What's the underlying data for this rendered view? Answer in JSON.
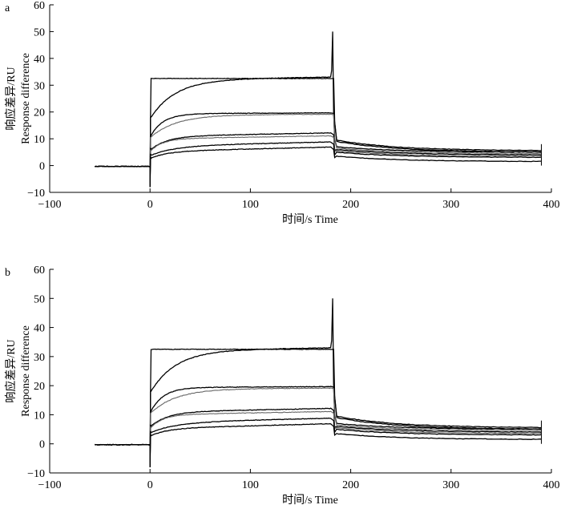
{
  "chart_data": [
    {
      "type": "line",
      "panel_label": "a",
      "xlabel": "时间/s Time",
      "ylabel_line1": "响应差异/RU",
      "ylabel_line2": "Response difference",
      "xlim": [
        -100,
        400
      ],
      "ylim": [
        -10,
        60
      ],
      "xticks": [
        -100,
        0,
        100,
        200,
        300,
        400
      ],
      "yticks": [
        -10,
        0,
        10,
        20,
        30,
        40,
        50,
        60
      ],
      "grid": false,
      "series": [
        {
          "plateau": 32.5,
          "assoc_rise": 0.35,
          "dissoc_end": 5.5,
          "spike": 50,
          "style": "black"
        },
        {
          "plateau": 32.5,
          "assoc_rise": 0.0,
          "dissoc_end": 5.0,
          "spike": 0,
          "style": "black"
        },
        {
          "plateau": 19.5,
          "assoc_rise": 0.12,
          "dissoc_end": 5.0,
          "spike": 0,
          "style": "black"
        },
        {
          "plateau": 19.0,
          "assoc_rise": 0.1,
          "dissoc_end": 4.5,
          "spike": 0,
          "style": "grey"
        },
        {
          "plateau": 11.5,
          "assoc_rise": 0.45,
          "dissoc_end": 4.0,
          "spike": 0,
          "style": "black"
        },
        {
          "plateau": 10.5,
          "assoc_rise": 0.4,
          "dissoc_end": 3.5,
          "spike": 0,
          "style": "grey"
        },
        {
          "plateau": 8.0,
          "assoc_rise": 0.55,
          "dissoc_end": 3.0,
          "spike": 0,
          "style": "black"
        },
        {
          "plateau": 6.0,
          "assoc_rise": 0.6,
          "dissoc_end": 1.5,
          "spike": 0,
          "style": "black"
        }
      ]
    },
    {
      "type": "line",
      "panel_label": "b",
      "xlabel": "时间/s Time",
      "ylabel_line1": "响应差异/RU",
      "ylabel_line2": "Response difference",
      "xlim": [
        -100,
        400
      ],
      "ylim": [
        -10,
        60
      ],
      "xticks": [
        -100,
        0,
        100,
        200,
        300,
        400
      ],
      "yticks": [
        -10,
        0,
        10,
        20,
        30,
        40,
        50,
        60
      ],
      "grid": false,
      "series": [
        {
          "plateau": 32.5,
          "assoc_rise": 0.35,
          "dissoc_end": 5.5,
          "spike": 50,
          "style": "black"
        },
        {
          "plateau": 32.5,
          "assoc_rise": 0.0,
          "dissoc_end": 5.0,
          "spike": 0,
          "style": "black"
        },
        {
          "plateau": 19.5,
          "assoc_rise": 0.12,
          "dissoc_end": 5.0,
          "spike": 0,
          "style": "black"
        },
        {
          "plateau": 19.0,
          "assoc_rise": 0.1,
          "dissoc_end": 4.5,
          "spike": 0,
          "style": "grey"
        },
        {
          "plateau": 11.5,
          "assoc_rise": 0.45,
          "dissoc_end": 4.0,
          "spike": 0,
          "style": "black"
        },
        {
          "plateau": 10.5,
          "assoc_rise": 0.4,
          "dissoc_end": 3.5,
          "spike": 0,
          "style": "grey"
        },
        {
          "plateau": 8.0,
          "assoc_rise": 0.55,
          "dissoc_end": 3.0,
          "spike": 0,
          "style": "black"
        },
        {
          "plateau": 6.0,
          "assoc_rise": 0.6,
          "dissoc_end": 1.5,
          "spike": 0,
          "style": "black"
        }
      ]
    }
  ]
}
